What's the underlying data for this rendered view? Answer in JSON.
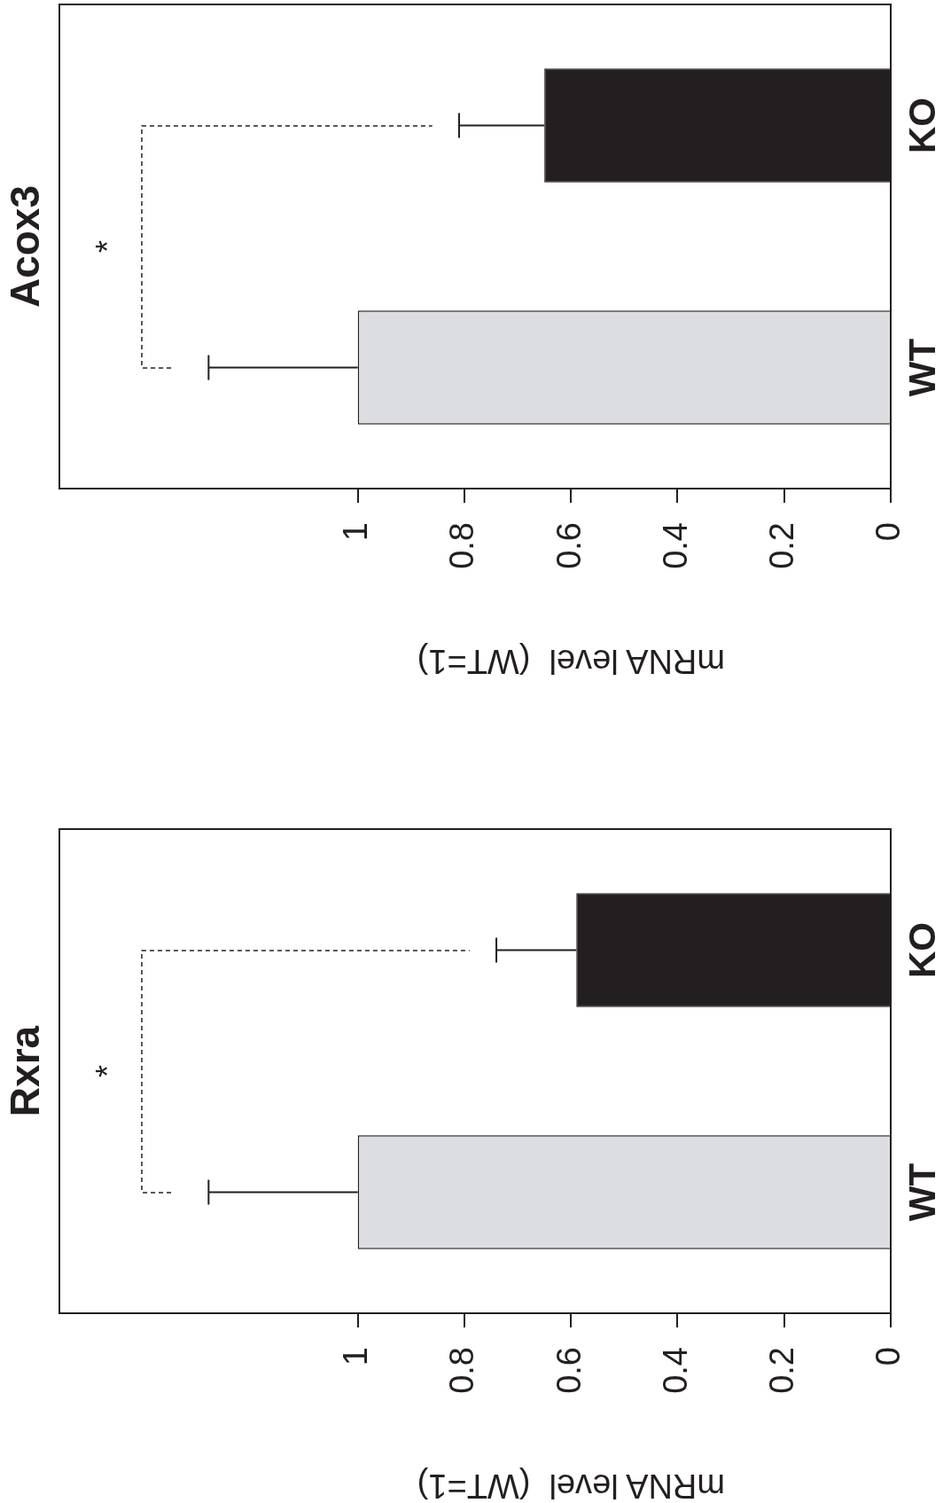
{
  "chart_data": [
    {
      "type": "bar",
      "orientation": "horizontal",
      "title": "Acox3",
      "xlabel": "mRNA level  (WT=1)",
      "categories": [
        "KO",
        "WT"
      ],
      "values": [
        0.65,
        1
      ],
      "colors": [
        "#231f20",
        "#dcdde0"
      ],
      "errors": [
        [
          0.65,
          0.81
        ],
        [
          1,
          1.28
        ]
      ],
      "xlim": [
        1.56,
        0
      ],
      "xticks": [
        1,
        0.8,
        0.6,
        0.4,
        0.2,
        0
      ],
      "annotations": [
        "*"
      ]
    },
    {
      "type": "bar",
      "orientation": "horizontal",
      "title": "Rxra",
      "xlabel": "mRNA level  (WT=1)",
      "categories": [
        "KO",
        "WT"
      ],
      "values": [
        0.59,
        1
      ],
      "colors": [
        "#231f20",
        "#dcdde0"
      ],
      "errors": [
        [
          0.59,
          0.74
        ],
        [
          1,
          1.28
        ]
      ],
      "xlim": [
        1.56,
        0
      ],
      "xticks": [
        1,
        0.8,
        0.6,
        0.4,
        0.2,
        0
      ],
      "annotations": [
        "*"
      ]
    }
  ]
}
